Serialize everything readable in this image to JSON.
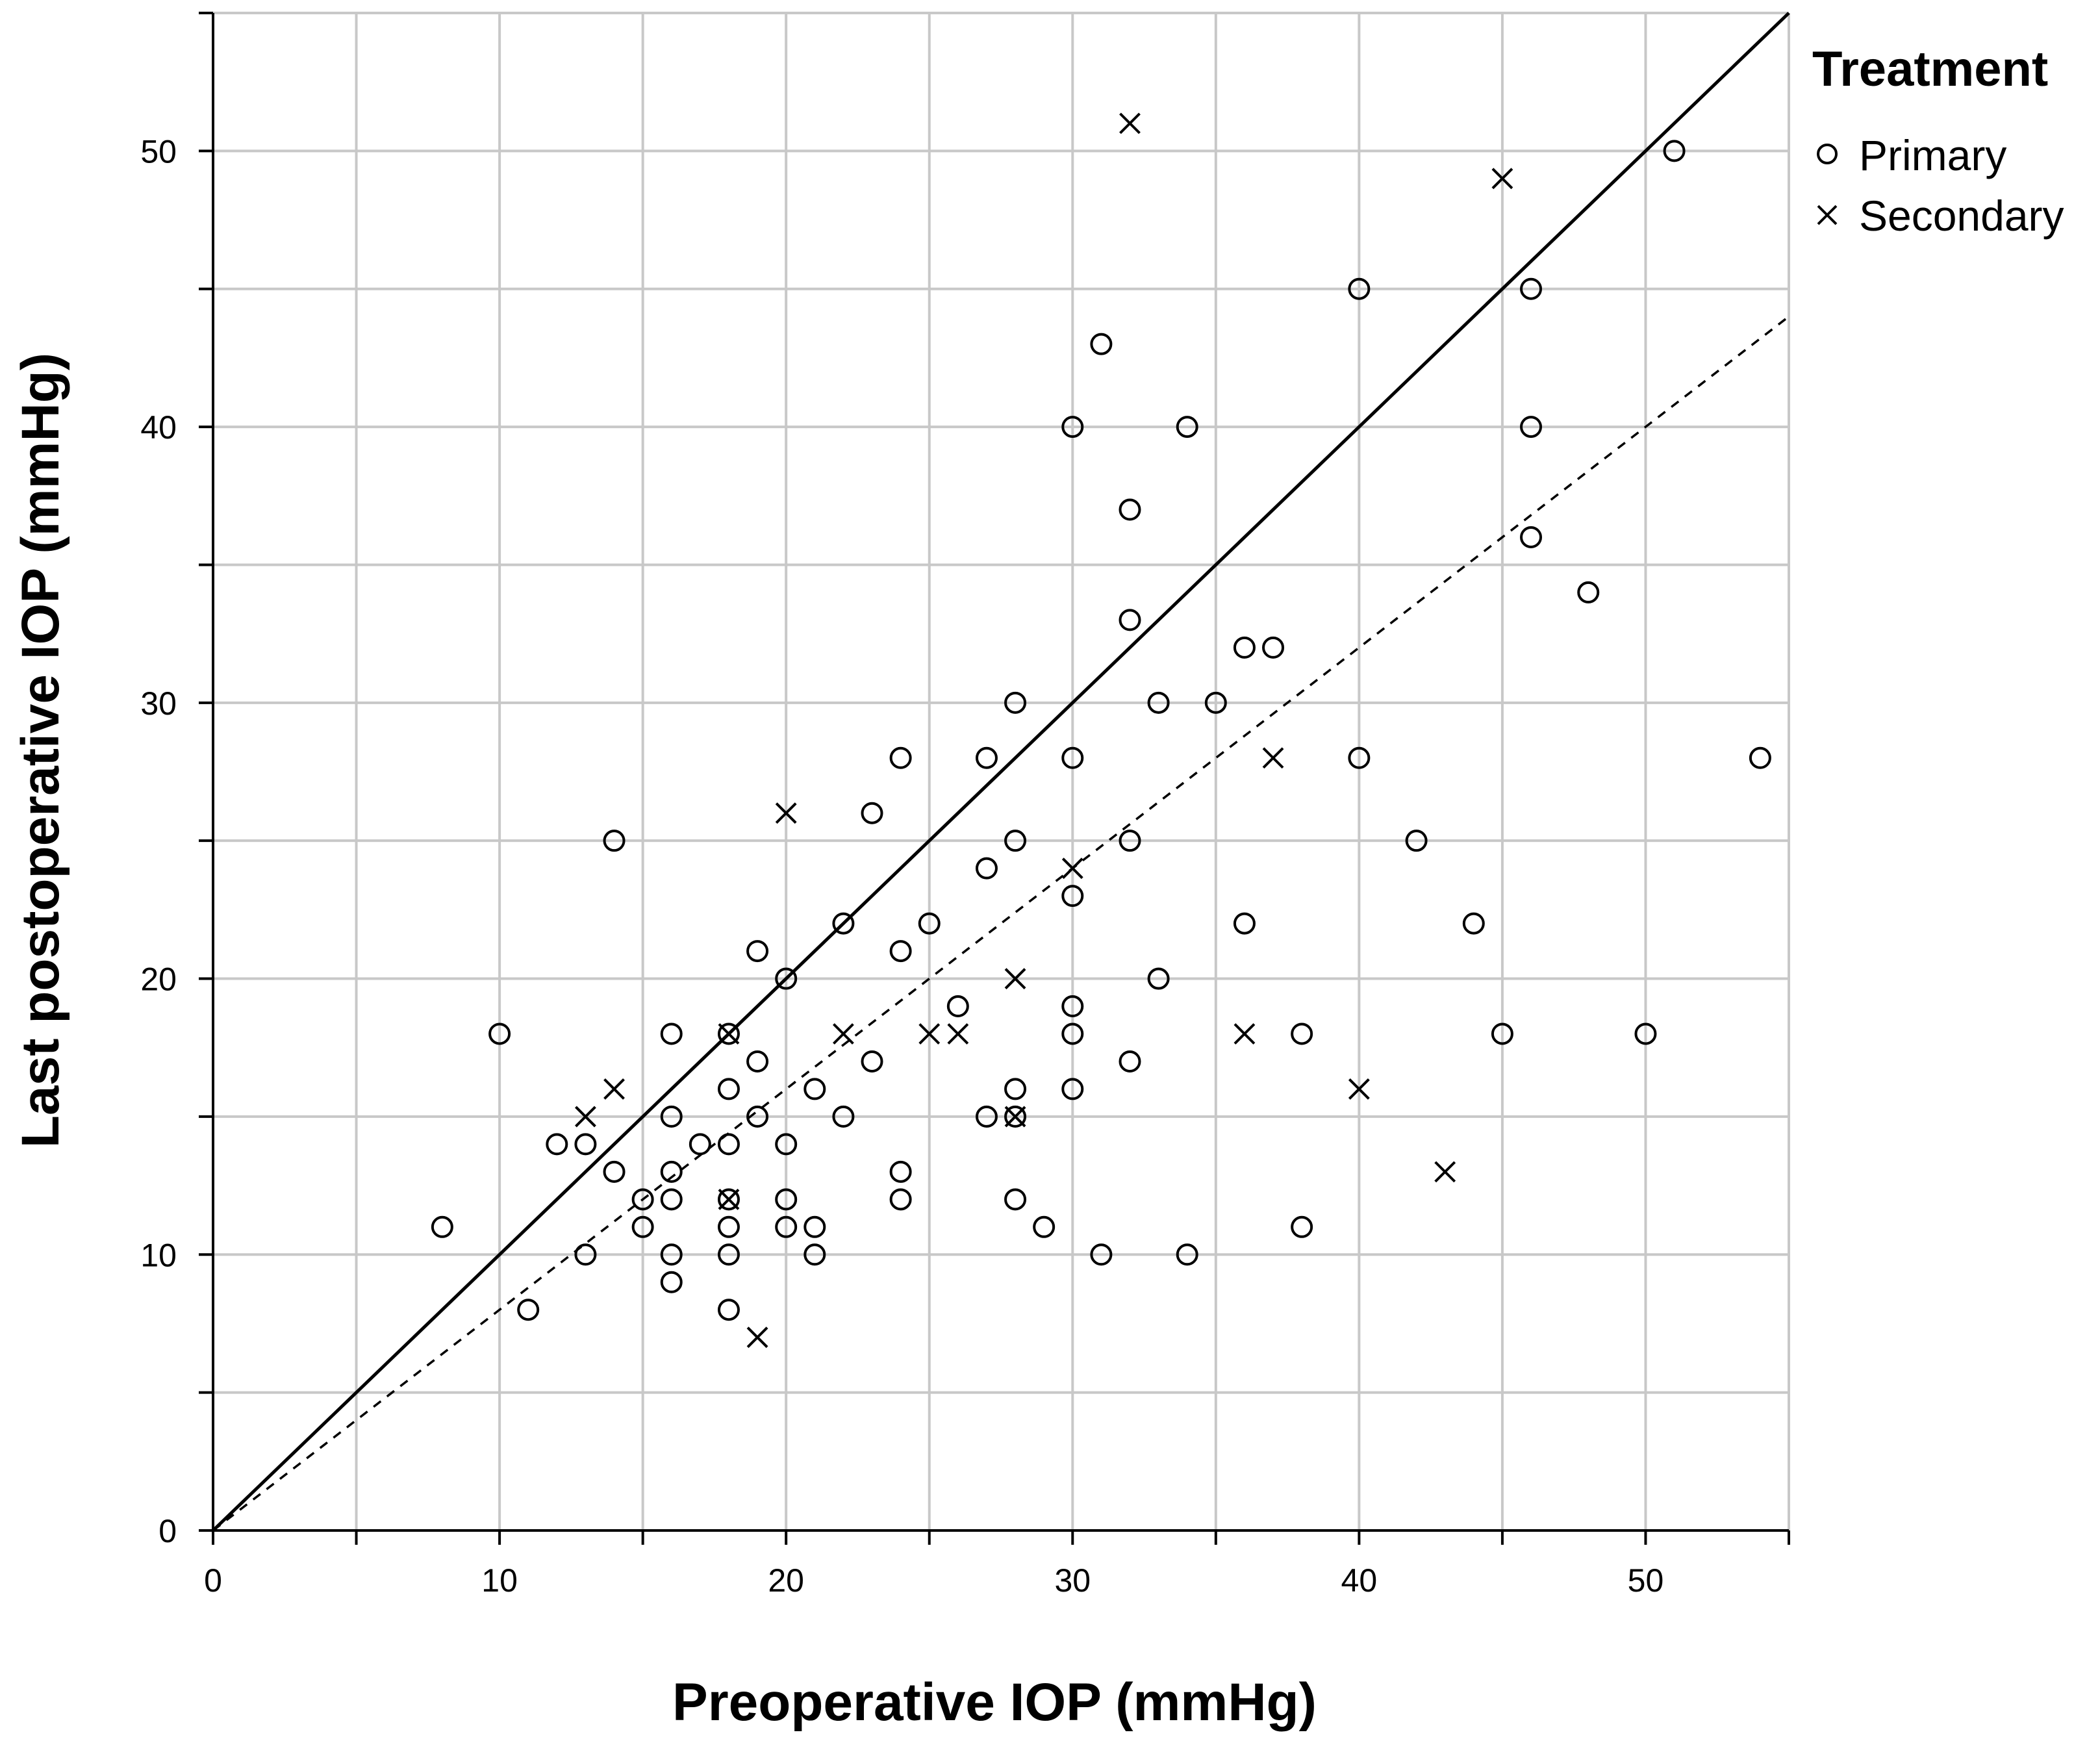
{
  "chart_data": {
    "type": "scatter",
    "xlabel": "Preoperative IOP (mmHg)",
    "ylabel": "Last  postoperative  IOP (mmHg)",
    "xlim": [
      0,
      55
    ],
    "ylim": [
      0,
      55
    ],
    "x_ticks": [
      0,
      10,
      20,
      30,
      40,
      50
    ],
    "y_ticks": [
      0,
      10,
      20,
      30,
      40,
      50
    ],
    "grid": true,
    "legend": {
      "title": "Treatment",
      "position": "top-right",
      "entries": [
        {
          "label": "Primary",
          "marker": "circle"
        },
        {
          "label": "Secondary",
          "marker": "cross"
        }
      ]
    },
    "series": [
      {
        "name": "Primary",
        "marker": "circle",
        "points": [
          [
            8,
            11
          ],
          [
            10,
            18
          ],
          [
            11,
            8
          ],
          [
            12,
            14
          ],
          [
            13,
            14
          ],
          [
            13,
            10
          ],
          [
            14,
            25
          ],
          [
            14,
            13
          ],
          [
            15,
            12
          ],
          [
            15,
            11
          ],
          [
            16,
            18
          ],
          [
            16,
            15
          ],
          [
            16,
            13
          ],
          [
            16,
            12
          ],
          [
            16,
            10
          ],
          [
            16,
            9
          ],
          [
            17,
            14
          ],
          [
            18,
            18
          ],
          [
            18,
            16
          ],
          [
            18,
            14
          ],
          [
            18,
            12
          ],
          [
            18,
            11
          ],
          [
            18,
            10
          ],
          [
            18,
            8
          ],
          [
            19,
            21
          ],
          [
            19,
            17
          ],
          [
            19,
            15
          ],
          [
            20,
            20
          ],
          [
            20,
            14
          ],
          [
            20,
            12
          ],
          [
            20,
            11
          ],
          [
            21,
            16
          ],
          [
            21,
            11
          ],
          [
            21,
            10
          ],
          [
            22,
            22
          ],
          [
            22,
            15
          ],
          [
            23,
            26
          ],
          [
            23,
            17
          ],
          [
            24,
            28
          ],
          [
            24,
            21
          ],
          [
            24,
            13
          ],
          [
            24,
            12
          ],
          [
            25,
            22
          ],
          [
            26,
            19
          ],
          [
            27,
            28
          ],
          [
            27,
            24
          ],
          [
            27,
            15
          ],
          [
            28,
            30
          ],
          [
            28,
            25
          ],
          [
            28,
            16
          ],
          [
            28,
            15
          ],
          [
            28,
            12
          ],
          [
            29,
            11
          ],
          [
            30,
            40
          ],
          [
            30,
            28
          ],
          [
            30,
            23
          ],
          [
            30,
            19
          ],
          [
            30,
            18
          ],
          [
            30,
            16
          ],
          [
            31,
            43
          ],
          [
            31,
            10
          ],
          [
            32,
            37
          ],
          [
            32,
            33
          ],
          [
            32,
            25
          ],
          [
            32,
            17
          ],
          [
            33,
            30
          ],
          [
            33,
            20
          ],
          [
            34,
            40
          ],
          [
            34,
            10
          ],
          [
            35,
            30
          ],
          [
            36,
            32
          ],
          [
            36,
            22
          ],
          [
            37,
            32
          ],
          [
            38,
            18
          ],
          [
            38,
            11
          ],
          [
            40,
            45
          ],
          [
            40,
            28
          ],
          [
            42,
            25
          ],
          [
            44,
            22
          ],
          [
            45,
            18
          ],
          [
            46,
            45
          ],
          [
            46,
            40
          ],
          [
            46,
            36
          ],
          [
            48,
            34
          ],
          [
            50,
            18
          ],
          [
            51,
            50
          ],
          [
            54,
            28
          ]
        ]
      },
      {
        "name": "Secondary",
        "marker": "cross",
        "points": [
          [
            13,
            15
          ],
          [
            14,
            16
          ],
          [
            18,
            18
          ],
          [
            18,
            12
          ],
          [
            19,
            7
          ],
          [
            20,
            26
          ],
          [
            22,
            18
          ],
          [
            25,
            18
          ],
          [
            26,
            18
          ],
          [
            28,
            20
          ],
          [
            28,
            15
          ],
          [
            30,
            24
          ],
          [
            32,
            51
          ],
          [
            36,
            18
          ],
          [
            37,
            28
          ],
          [
            40,
            16
          ],
          [
            43,
            13
          ],
          [
            45,
            49
          ]
        ]
      }
    ],
    "reference_lines": [
      {
        "name": "identity",
        "style": "solid",
        "from": [
          0,
          0
        ],
        "to": [
          55,
          55
        ]
      },
      {
        "name": "fit",
        "style": "dashed",
        "from": [
          0,
          0
        ],
        "to": [
          55,
          44
        ]
      }
    ]
  }
}
